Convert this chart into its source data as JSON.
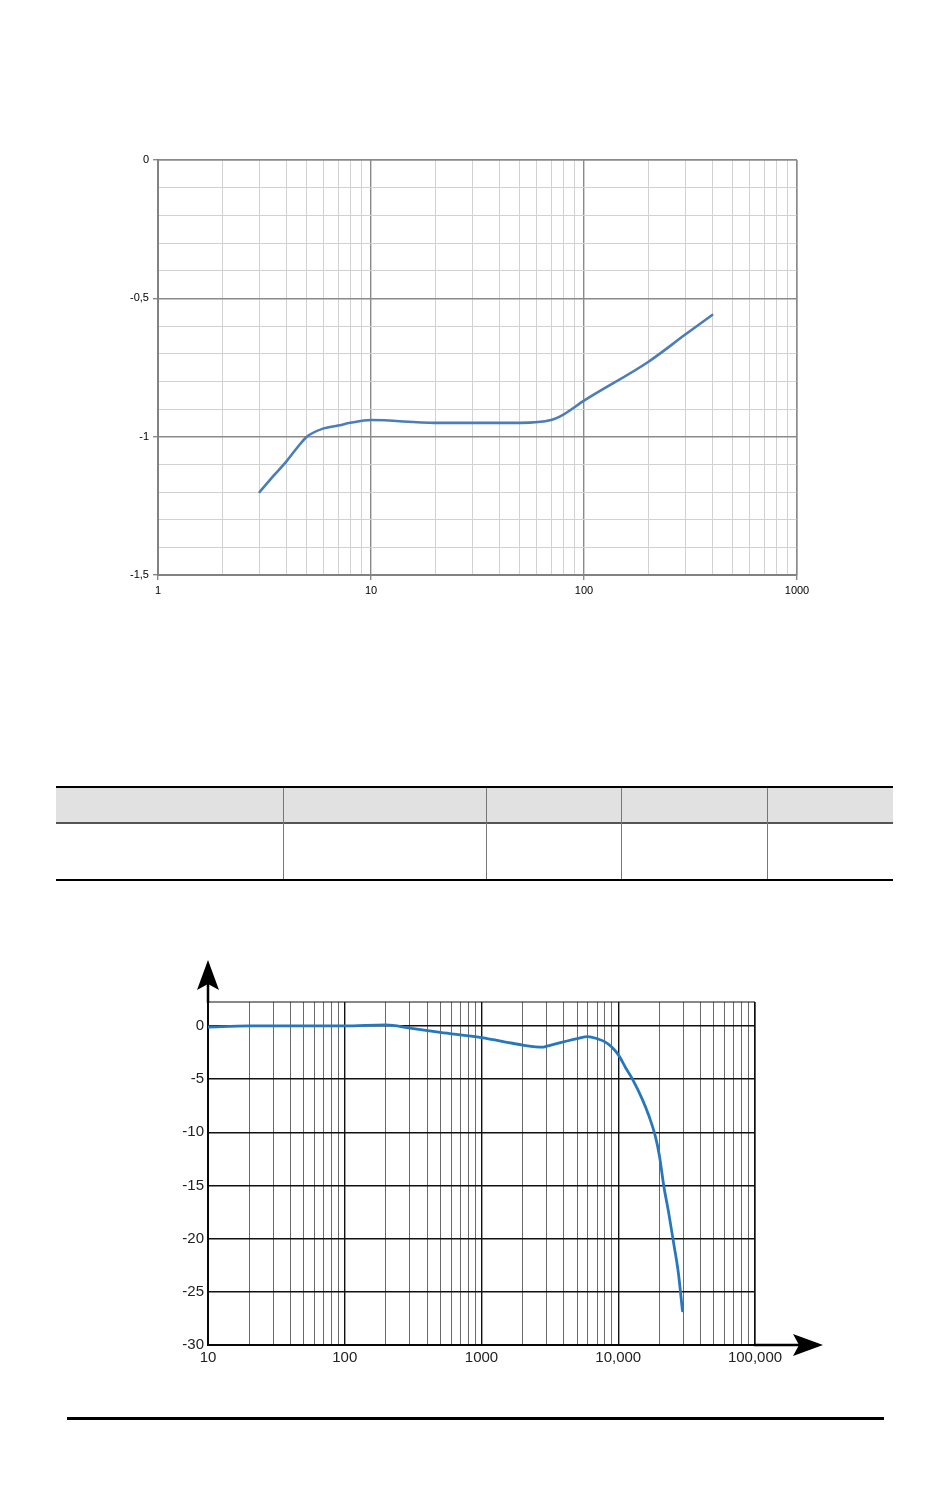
{
  "chart_data": [
    {
      "type": "line",
      "x": [
        3,
        3.5,
        4,
        4.5,
        5,
        6,
        7,
        8,
        10,
        20,
        30,
        50,
        70,
        80,
        100,
        200,
        300,
        400
      ],
      "series": [
        {
          "color": "#4a7dba",
          "values": [
            -1.2,
            -1.14,
            -1.09,
            -1.04,
            -1.0,
            -0.97,
            -0.96,
            -0.95,
            -0.94,
            -0.95,
            -0.95,
            -0.95,
            -0.94,
            -0.92,
            -0.87,
            -0.73,
            -0.63,
            -0.56
          ]
        }
      ],
      "xlim": [
        1,
        1000
      ],
      "ylim": [
        -1.5,
        0
      ],
      "xticks": [
        1,
        {
          "value": 2,
          "label": null
        },
        {
          "value": 3,
          "label": null
        },
        {
          "value": 4,
          "label": null
        },
        {
          "value": 5,
          "label": null
        },
        {
          "value": 6,
          "label": null
        },
        {
          "value": 7,
          "label": null
        },
        {
          "value": 8,
          "label": null
        },
        {
          "value": 9,
          "label": null
        },
        10,
        {
          "value": 20,
          "label": null
        },
        {
          "value": 30,
          "label": null
        },
        {
          "value": 40,
          "label": null
        },
        {
          "value": 50,
          "label": null
        },
        {
          "value": 60,
          "label": null
        },
        {
          "value": 70,
          "label": null
        },
        {
          "value": 80,
          "label": null
        },
        {
          "value": 90,
          "label": null
        },
        100,
        {
          "value": 200,
          "label": null
        },
        {
          "value": 300,
          "label": null
        },
        {
          "value": 400,
          "label": null
        },
        {
          "value": 500,
          "label": null
        },
        {
          "value": 600,
          "label": null
        },
        {
          "value": 700,
          "label": null
        },
        {
          "value": 800,
          "label": null
        },
        {
          "value": 900,
          "label": null
        },
        1000
      ],
      "yticks": [
        0,
        {
          "value": -0.1,
          "label": null
        },
        {
          "value": -0.2,
          "label": null
        },
        {
          "value": -0.3,
          "label": null
        },
        {
          "value": -0.4,
          "label": null
        },
        {
          "value": -0.5,
          "label": "-0,5"
        },
        {
          "value": -0.6,
          "label": null
        },
        {
          "value": -0.7,
          "label": null
        },
        {
          "value": -0.8,
          "label": null
        },
        {
          "value": -0.9,
          "label": null
        },
        -1,
        {
          "value": -1.1,
          "label": null
        },
        {
          "value": -1.2,
          "label": null
        },
        {
          "value": -1.3,
          "label": null
        },
        {
          "value": -1.4,
          "label": null
        },
        {
          "value": -1.5,
          "label": "-1,5"
        }
      ],
      "log": "x",
      "grid": true,
      "marker": "none",
      "line_style": "solid"
    },
    {
      "type": "line",
      "x": [
        10,
        20,
        50,
        100,
        200,
        300,
        500,
        1000,
        2000,
        2800,
        3000,
        5000,
        6000,
        7000,
        8000,
        9000,
        10000,
        11400,
        12700,
        15000,
        16800,
        18700,
        20000,
        21500,
        23400,
        25400,
        27500,
        29500
      ],
      "series": [
        {
          "color": "#2777be",
          "values": [
            -0.1,
            0,
            0,
            0,
            0.1,
            -0.2,
            -0.6,
            -1.1,
            -1.8,
            -2,
            -1.9,
            -1.2,
            -1,
            -1.2,
            -1.5,
            -2,
            -2.7,
            -4,
            -5,
            -6.9,
            -8.5,
            -10.4,
            -12.2,
            -15,
            -17.6,
            -20.4,
            -23.2,
            -26.8
          ]
        }
      ],
      "xlim": [
        10,
        100000
      ],
      "ylim": [
        -30,
        2.25
      ],
      "xticks": [
        10,
        {
          "value": 20,
          "label": null
        },
        {
          "value": 30,
          "label": null
        },
        {
          "value": 40,
          "label": null
        },
        {
          "value": 50,
          "label": null
        },
        {
          "value": 60,
          "label": null
        },
        {
          "value": 70,
          "label": null
        },
        {
          "value": 80,
          "label": null
        },
        {
          "value": 90,
          "label": null
        },
        100,
        {
          "value": 200,
          "label": null
        },
        {
          "value": 300,
          "label": null
        },
        {
          "value": 400,
          "label": null
        },
        {
          "value": 500,
          "label": null
        },
        {
          "value": 600,
          "label": null
        },
        {
          "value": 700,
          "label": null
        },
        {
          "value": 800,
          "label": null
        },
        {
          "value": 900,
          "label": null
        },
        1000,
        {
          "value": 2000,
          "label": null
        },
        {
          "value": 3000,
          "label": null
        },
        {
          "value": 4000,
          "label": null
        },
        {
          "value": 5000,
          "label": null
        },
        {
          "value": 6000,
          "label": null
        },
        {
          "value": 7000,
          "label": null
        },
        {
          "value": 8000,
          "label": null
        },
        {
          "value": 9000,
          "label": null
        },
        {
          "value": 10000,
          "label": "10,000"
        },
        {
          "value": 20000,
          "label": null
        },
        {
          "value": 30000,
          "label": null
        },
        {
          "value": 40000,
          "label": null
        },
        {
          "value": 50000,
          "label": null
        },
        {
          "value": 60000,
          "label": null
        },
        {
          "value": 70000,
          "label": null
        },
        {
          "value": 80000,
          "label": null
        },
        {
          "value": 90000,
          "label": null
        },
        {
          "value": 100000,
          "label": "100,000"
        }
      ],
      "yticks": [
        0,
        -5,
        -10,
        -15,
        -20,
        -25,
        -30
      ],
      "log": "x",
      "grid": true,
      "marker": "none",
      "line_style": "solid"
    }
  ]
}
